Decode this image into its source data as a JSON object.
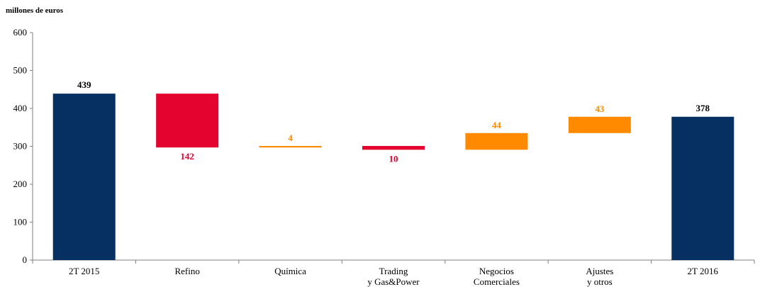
{
  "unit_label": "millones de euros",
  "colors": {
    "total": "#062f62",
    "decrease": "#e4032e",
    "increase": "#ff8a00",
    "axis": "#7f7f7f",
    "total_label": "#000000"
  },
  "chart_data": {
    "type": "bar",
    "subtype": "waterfall",
    "title": "",
    "xlabel": "",
    "ylabel": "millones de euros",
    "ylim": [
      0,
      600
    ],
    "yticks": [
      "0",
      "100",
      "200",
      "300",
      "400",
      "500",
      "600"
    ],
    "grid": false,
    "categories": [
      [
        "2T 2015"
      ],
      [
        "Refino"
      ],
      [
        "Química"
      ],
      [
        "Trading",
        "y Gas&Power"
      ],
      [
        "Negocios",
        "Comerciales"
      ],
      [
        "Ajustes",
        "y otros"
      ],
      [
        "2T 2016"
      ]
    ],
    "bars": [
      {
        "kind": "total",
        "start": 0,
        "end": 439,
        "label": "439"
      },
      {
        "kind": "decrease",
        "start": 439,
        "end": 297,
        "label": "142"
      },
      {
        "kind": "increase",
        "start": 297,
        "end": 301,
        "label": "4"
      },
      {
        "kind": "decrease",
        "start": 301,
        "end": 291,
        "label": "10"
      },
      {
        "kind": "increase",
        "start": 291,
        "end": 335,
        "label": "44"
      },
      {
        "kind": "increase",
        "start": 335,
        "end": 378,
        "label": "43"
      },
      {
        "kind": "total",
        "start": 0,
        "end": 378,
        "label": "378"
      }
    ]
  }
}
